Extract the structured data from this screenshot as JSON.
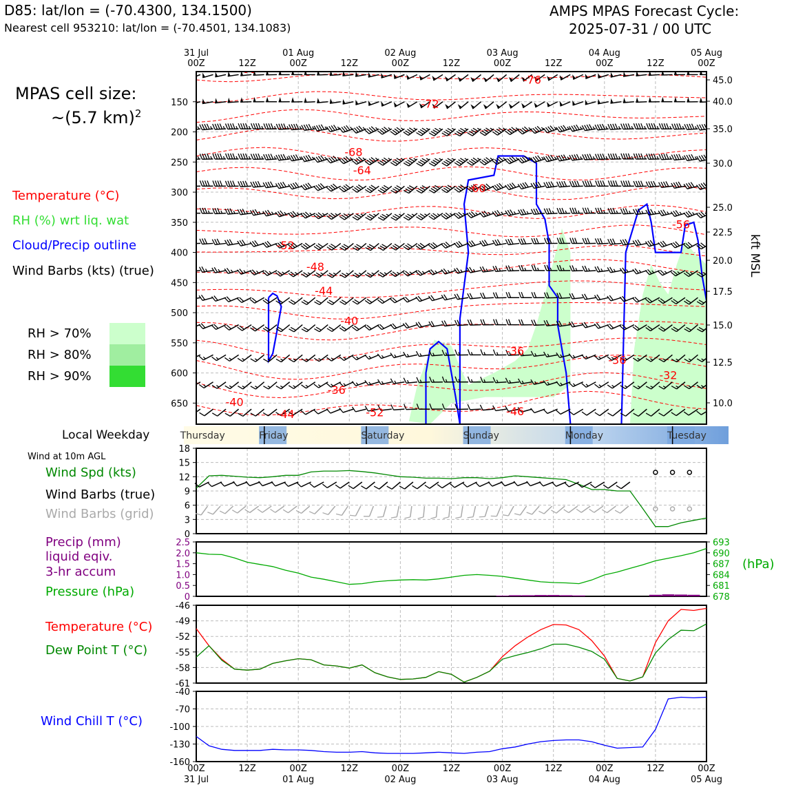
{
  "header": {
    "station": "D85: lat/lon = (-70.4300, 134.1500)",
    "nearest": "Nearest cell 953210: lat/lon = (-70.4501, 134.1083)",
    "cycle_line1": "AMPS MPAS Forecast Cycle:",
    "cycle_line2": "2025-07-31 / 00 UTC"
  },
  "time_axis": {
    "major_labels": [
      {
        "day": "31 Jul",
        "hour": "00Z",
        "h": 0
      },
      {
        "day": "01 Aug",
        "hour": "00Z",
        "h": 24
      },
      {
        "day": "02 Aug",
        "hour": "00Z",
        "h": 48
      },
      {
        "day": "03 Aug",
        "hour": "00Z",
        "h": 72
      },
      {
        "day": "04 Aug",
        "hour": "00Z",
        "h": 96
      },
      {
        "day": "05 Aug",
        "hour": "00Z",
        "h": 120
      }
    ],
    "minor_labels": [
      {
        "hour": "12Z",
        "h": 12
      },
      {
        "hour": "12Z",
        "h": 36
      },
      {
        "hour": "12Z",
        "h": 60
      },
      {
        "hour": "12Z",
        "h": 84
      },
      {
        "hour": "12Z",
        "h": 108
      }
    ]
  },
  "legend": {
    "cell_size_1": "MPAS cell size:",
    "cell_size_2": "~(5.7 km)",
    "cell_size_sup": "2",
    "temperature": "Temperature (°C)",
    "rh": "RH (%) wrt liq. wat",
    "cloud": "Cloud/Precip outline",
    "wind": "Wind Barbs (kts) (true)",
    "rh70": "RH > 70%",
    "rh80": "RH > 80%",
    "rh90": "RH > 90%",
    "colors": {
      "temperature": "#ff0000",
      "rh": "#33dd33",
      "cloud": "#0000ff",
      "rh70": "#ccffcc",
      "rh80": "#a0eea0",
      "rh90": "#33dd33"
    }
  },
  "weekday": {
    "title": "Local Weekday",
    "days": [
      {
        "name": "Thursday",
        "h": 4
      },
      {
        "name": "Friday",
        "h": 18
      },
      {
        "name": "Saturday",
        "h": 42
      },
      {
        "name": "Sunday",
        "h": 66
      },
      {
        "name": "Monday",
        "h": 90
      },
      {
        "name": "Tuesday",
        "h": 114
      }
    ]
  },
  "panel_labels": {
    "wind_title": "Wind at 10m AGL",
    "wind_spd": "Wind Spd (kts)",
    "barbs_true": "Wind Barbs (true)",
    "barbs_grid": "Wind Barbs (grid)",
    "precip1": "Precip (mm)",
    "precip2": "liquid eqiv.",
    "precip3": "3-hr accum",
    "pressure": "Pressure (hPa)",
    "pressure_unit": "(hPa)",
    "temp": "Temperature (°C)",
    "dew": "Dew Point T (°C)",
    "chill": "Wind Chill T (°C)",
    "kft": "kft MSL"
  },
  "chart_data": [
    {
      "type": "heatmap",
      "panel": "cross-section",
      "title": "",
      "y_pressure_ticks": [
        150,
        200,
        250,
        300,
        350,
        400,
        450,
        500,
        550,
        600,
        650
      ],
      "y_kft_ticks": [
        "45.0",
        "40.0",
        "35.0",
        "30.0",
        "25.0",
        "22.5",
        "20.0",
        "17.5",
        "15.0",
        "12.5",
        "10.0"
      ],
      "temperature_labels": [
        {
          "text": "-60",
          "h": 12,
          "p": 102
        },
        {
          "text": "-76",
          "h": 79,
          "p": 120
        },
        {
          "text": "-72",
          "h": 55,
          "p": 160
        },
        {
          "text": "-68",
          "h": 37,
          "p": 240
        },
        {
          "text": "-64",
          "h": 39,
          "p": 270
        },
        {
          "text": "-60",
          "h": 66,
          "p": 300
        },
        {
          "text": "-56",
          "h": 114,
          "p": 360
        },
        {
          "text": "-52",
          "h": 21,
          "p": 395
        },
        {
          "text": "-48",
          "h": 28,
          "p": 430
        },
        {
          "text": "-44",
          "h": 30,
          "p": 470
        },
        {
          "text": "-40",
          "h": 36,
          "p": 520
        },
        {
          "text": "-36",
          "h": 75,
          "p": 570
        },
        {
          "text": "-36",
          "h": 99,
          "p": 585
        },
        {
          "text": "-32",
          "h": 111,
          "p": 610
        },
        {
          "text": "-36",
          "h": 33,
          "p": 635
        },
        {
          "text": "-40",
          "h": 9,
          "p": 655
        },
        {
          "text": "-44",
          "h": 21,
          "p": 675
        },
        {
          "text": "-52",
          "h": 42,
          "p": 672
        },
        {
          "text": "-46",
          "h": 75,
          "p": 670
        }
      ],
      "cloud_outlines": [
        [
          [
            17,
            475
          ],
          [
            18,
            468
          ],
          [
            19,
            472
          ],
          [
            20,
            490
          ],
          [
            19,
            530
          ],
          [
            18,
            568
          ],
          [
            17,
            580
          ],
          [
            17,
            520
          ],
          [
            17,
            475
          ]
        ],
        [
          [
            54,
            685
          ],
          [
            54,
            600
          ],
          [
            55,
            560
          ],
          [
            57,
            548
          ],
          [
            59,
            560
          ],
          [
            60,
            600
          ],
          [
            61,
            640
          ],
          [
            62,
            685
          ]
        ],
        [
          [
            62,
            685
          ],
          [
            62,
            510
          ],
          [
            64,
            400
          ],
          [
            63,
            320
          ],
          [
            64,
            280
          ],
          [
            70,
            272
          ],
          [
            71,
            240
          ],
          [
            77,
            240
          ],
          [
            80,
            252
          ],
          [
            80,
            320
          ],
          [
            82,
            345
          ],
          [
            83,
            385
          ],
          [
            83,
            455
          ],
          [
            85,
            475
          ],
          [
            85,
            520
          ],
          [
            86,
            560
          ],
          [
            87,
            600
          ],
          [
            88,
            685
          ]
        ],
        [
          [
            100,
            685
          ],
          [
            101,
            400
          ],
          [
            104,
            330
          ],
          [
            106,
            320
          ],
          [
            107,
            350
          ],
          [
            108,
            400
          ],
          [
            114,
            400
          ],
          [
            115,
            355
          ],
          [
            117,
            350
          ],
          [
            118,
            380
          ],
          [
            119,
            440
          ],
          [
            120,
            480
          ]
        ]
      ],
      "rh_regions": [
        [
          [
            50,
            680
          ],
          [
            52,
            620
          ],
          [
            56,
            545
          ],
          [
            60,
            555
          ],
          [
            62,
            590
          ],
          [
            64,
            620
          ],
          [
            70,
            600
          ],
          [
            75,
            580
          ],
          [
            78,
            560
          ],
          [
            80,
            520
          ],
          [
            82,
            470
          ],
          [
            86,
            360
          ],
          [
            88,
            400
          ],
          [
            88,
            620
          ],
          [
            84,
            640
          ],
          [
            76,
            640
          ],
          [
            68,
            640
          ],
          [
            60,
            650
          ],
          [
            55,
            685
          ]
        ],
        [
          [
            102,
            685
          ],
          [
            103,
            560
          ],
          [
            105,
            470
          ],
          [
            107,
            420
          ],
          [
            109,
            450
          ],
          [
            111,
            470
          ],
          [
            113,
            420
          ],
          [
            115,
            380
          ],
          [
            117,
            400
          ],
          [
            120,
            420
          ],
          [
            120,
            685
          ]
        ]
      ],
      "wind_rows": [
        {
          "p": 105,
          "spd": 50
        },
        {
          "p": 150,
          "spd": 50
        },
        {
          "p": 195,
          "spd": 45
        },
        {
          "p": 245,
          "spd": 45
        },
        {
          "p": 290,
          "spd": 40
        },
        {
          "p": 335,
          "spd": 35
        },
        {
          "p": 385,
          "spd": 30
        },
        {
          "p": 430,
          "spd": 25
        },
        {
          "p": 475,
          "spd": 20
        },
        {
          "p": 520,
          "spd": 20
        },
        {
          "p": 570,
          "spd": 15
        },
        {
          "p": 615,
          "spd": 15
        },
        {
          "p": 660,
          "spd": 10
        }
      ]
    },
    {
      "type": "line",
      "panel": "wind-10m",
      "title": "",
      "ylim": [
        0,
        18
      ],
      "y_ticks": [
        "0",
        "3",
        "6",
        "9",
        "12",
        "15",
        "18"
      ],
      "series": [
        {
          "name": "Wind Spd (kts)",
          "x": [
            0,
            3,
            6,
            9,
            12,
            15,
            18,
            21,
            24,
            27,
            30,
            33,
            36,
            39,
            42,
            45,
            48,
            51,
            54,
            57,
            60,
            63,
            66,
            69,
            72,
            75,
            78,
            81,
            84,
            87,
            90,
            93,
            96,
            99,
            102,
            105,
            108,
            111,
            114,
            117,
            120
          ],
          "values": [
            9.6,
            12.2,
            12.3,
            12.1,
            11.9,
            11.8,
            12.0,
            12.3,
            12.3,
            13.0,
            13.2,
            13.2,
            13.3,
            13.1,
            12.8,
            12.4,
            12.0,
            11.9,
            11.7,
            11.7,
            11.6,
            11.8,
            11.8,
            11.6,
            11.8,
            12.2,
            12.0,
            11.8,
            11.6,
            11.4,
            10.4,
            9.3,
            9.3,
            9.0,
            9.0,
            5.3,
            1.5,
            1.5,
            2.3,
            2.8,
            3.3
          ]
        }
      ]
    },
    {
      "type": "line",
      "panel": "precip-pressure",
      "title": "",
      "y_left_ticks": [
        "0",
        "0.5",
        "1.0",
        "1.5",
        "2.0",
        "2.5"
      ],
      "y_right_ticks": [
        "678",
        "681",
        "684",
        "687",
        "690",
        "693"
      ],
      "ylim_left": [
        0,
        2.5
      ],
      "ylim_right": [
        678,
        693
      ],
      "series": [
        {
          "name": "Pressure (hPa)",
          "x": [
            0,
            3,
            6,
            9,
            12,
            15,
            18,
            21,
            24,
            27,
            30,
            33,
            36,
            39,
            42,
            45,
            48,
            51,
            54,
            57,
            60,
            63,
            66,
            69,
            72,
            75,
            78,
            81,
            84,
            87,
            90,
            93,
            96,
            99,
            102,
            105,
            108,
            111,
            114,
            117,
            120
          ],
          "values": [
            690.0,
            689.6,
            689.5,
            688.6,
            687.4,
            686.8,
            686.2,
            685.2,
            684.4,
            683.3,
            682.7,
            682.0,
            681.3,
            681.5,
            682.0,
            682.3,
            682.5,
            682.6,
            682.5,
            682.8,
            683.3,
            683.8,
            684.0,
            683.8,
            683.5,
            683.0,
            682.5,
            682.0,
            681.8,
            681.7,
            681.5,
            682.5,
            683.9,
            684.7,
            685.7,
            686.7,
            687.8,
            688.5,
            689.2,
            690.0,
            691.2
          ]
        },
        {
          "name": "Precip (mm)",
          "x": [
            72,
            75,
            78,
            81,
            84,
            87,
            90,
            108,
            111,
            114,
            117
          ],
          "values": [
            0.03,
            0.05,
            0.05,
            0.06,
            0.06,
            0.05,
            0.04,
            0.07,
            0.09,
            0.08,
            0.07
          ]
        }
      ]
    },
    {
      "type": "line",
      "panel": "temperature",
      "title": "",
      "ylim": [
        -61,
        -46
      ],
      "y_ticks": [
        "-61",
        "-58",
        "-55",
        "-52",
        "-49",
        "-46"
      ],
      "series": [
        {
          "name": "Temperature (°C)",
          "x": [
            0,
            3,
            6,
            9,
            12,
            15,
            18,
            21,
            24,
            27,
            30,
            33,
            36,
            39,
            42,
            45,
            48,
            51,
            54,
            57,
            60,
            63,
            66,
            69,
            72,
            75,
            78,
            81,
            84,
            87,
            90,
            93,
            96,
            99,
            102,
            105,
            108,
            111,
            114,
            117,
            120
          ],
          "values": [
            -50.5,
            -53.8,
            -56.4,
            -58.3,
            -58.5,
            -58.3,
            -57.2,
            -56.7,
            -56.3,
            -56.5,
            -57.5,
            -57.7,
            -58.1,
            -57.5,
            -59.0,
            -59.8,
            -60.3,
            -60.2,
            -59.9,
            -58.8,
            -59.3,
            -60.8,
            -59.9,
            -58.7,
            -55.9,
            -53.8,
            -52.1,
            -50.7,
            -49.7,
            -49.8,
            -50.7,
            -52.8,
            -55.8,
            -60.1,
            -60.6,
            -59.8,
            -53.2,
            -49.0,
            -46.8,
            -47.0,
            -46.6
          ]
        },
        {
          "name": "Dew Point T (°C)",
          "x": [
            0,
            3,
            6,
            9,
            12,
            15,
            18,
            21,
            24,
            27,
            30,
            33,
            36,
            39,
            42,
            45,
            48,
            51,
            54,
            57,
            60,
            63,
            66,
            69,
            72,
            75,
            78,
            81,
            84,
            87,
            90,
            93,
            96,
            99,
            102,
            105,
            108,
            111,
            114,
            117,
            120
          ],
          "values": [
            -56.0,
            -53.8,
            -56.6,
            -58.3,
            -58.5,
            -58.3,
            -57.2,
            -56.7,
            -56.3,
            -56.5,
            -57.5,
            -57.7,
            -58.1,
            -57.5,
            -59.0,
            -59.8,
            -60.3,
            -60.2,
            -59.9,
            -58.8,
            -59.3,
            -60.8,
            -59.9,
            -58.7,
            -56.4,
            -55.7,
            -55.1,
            -54.4,
            -53.5,
            -53.5,
            -54.1,
            -54.9,
            -56.4,
            -60.1,
            -60.6,
            -59.8,
            -55.2,
            -52.6,
            -50.8,
            -50.9,
            -49.6
          ]
        }
      ]
    },
    {
      "type": "line",
      "panel": "wind-chill",
      "title": "",
      "ylim": [
        -160,
        -40
      ],
      "y_ticks": [
        "-160",
        "-130",
        "-100",
        "-70",
        "-40"
      ],
      "series": [
        {
          "name": "Wind Chill T (°C)",
          "x": [
            0,
            3,
            6,
            9,
            12,
            15,
            18,
            21,
            24,
            27,
            30,
            33,
            36,
            39,
            42,
            45,
            48,
            51,
            54,
            57,
            60,
            63,
            66,
            69,
            72,
            75,
            78,
            81,
            84,
            87,
            90,
            93,
            96,
            99,
            102,
            105,
            108,
            111,
            114,
            117,
            120
          ],
          "values": [
            -117,
            -133,
            -139,
            -141,
            -141,
            -141,
            -139,
            -140,
            -140,
            -141,
            -143,
            -144,
            -144,
            -143,
            -145,
            -146,
            -146,
            -146,
            -145,
            -144,
            -145,
            -146,
            -144,
            -143,
            -138,
            -135,
            -130,
            -126,
            -124,
            -123,
            -123,
            -126,
            -132,
            -137,
            -136,
            -135,
            -105,
            -53,
            -50,
            -51,
            -50
          ]
        }
      ]
    }
  ]
}
